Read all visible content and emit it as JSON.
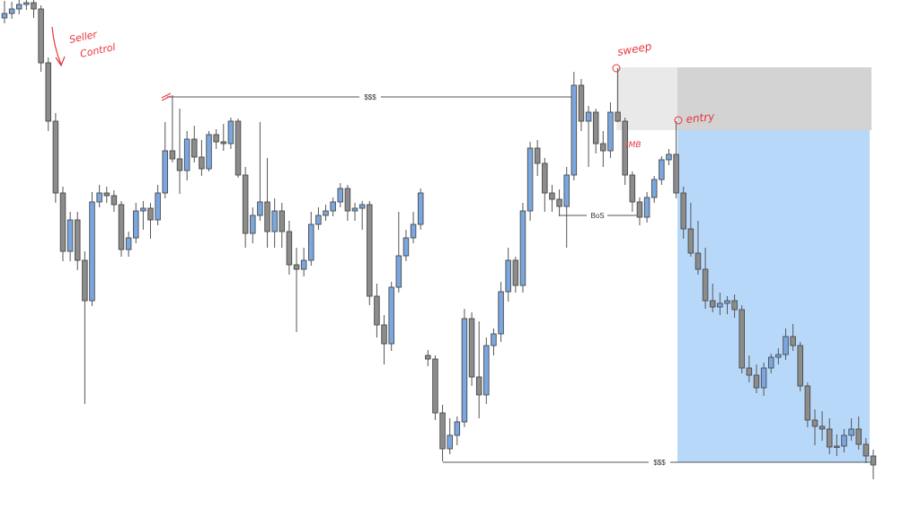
{
  "chart_data": {
    "type": "candlestick",
    "title": "",
    "xlabel": "",
    "ylabel": "",
    "axes_visible": false,
    "grid": false,
    "colors": {
      "bullish": "#7aa7e0",
      "bearish": "#8c8c8c",
      "outline": "#4a4a4a",
      "target_zone": "#b8d8fa",
      "supply_zone": "#e9e9e9",
      "supply_zone_dark": "#d3d3d3",
      "annotation": "#e8343a",
      "level_line": "#555555"
    },
    "candles_ohlc": [
      [
        556,
        575,
        550,
        561
      ],
      [
        561,
        574,
        555,
        566
      ],
      [
        566,
        576,
        560,
        571
      ],
      [
        571,
        576,
        565,
        573
      ],
      [
        573,
        576,
        556,
        566
      ],
      [
        566,
        570,
        496,
        506
      ],
      [
        506,
        512,
        430,
        441
      ],
      [
        441,
        450,
        350,
        361
      ],
      [
        361,
        368,
        285,
        296
      ],
      [
        296,
        340,
        285,
        331
      ],
      [
        331,
        340,
        275,
        286
      ],
      [
        286,
        296,
        126,
        241
      ],
      [
        241,
        362,
        235,
        351
      ],
      [
        351,
        370,
        345,
        361
      ],
      [
        361,
        368,
        350,
        358
      ],
      [
        358,
        364,
        340,
        348
      ],
      [
        348,
        352,
        290,
        298
      ],
      [
        298,
        318,
        290,
        311
      ],
      [
        311,
        350,
        305,
        341
      ],
      [
        341,
        352,
        320,
        344
      ],
      [
        344,
        350,
        310,
        331
      ],
      [
        331,
        370,
        325,
        361
      ],
      [
        361,
        440,
        355,
        408
      ],
      [
        408,
        470,
        395,
        399
      ],
      [
        399,
        455,
        360,
        386
      ],
      [
        386,
        430,
        375,
        421
      ],
      [
        421,
        436,
        395,
        401
      ],
      [
        401,
        420,
        380,
        388
      ],
      [
        388,
        430,
        385,
        426
      ],
      [
        426,
        432,
        410,
        418
      ],
      [
        418,
        438,
        408,
        416
      ],
      [
        416,
        445,
        410,
        441
      ],
      [
        441,
        444,
        378,
        381
      ],
      [
        381,
        390,
        300,
        316
      ],
      [
        316,
        345,
        305,
        336
      ],
      [
        336,
        440,
        330,
        351
      ],
      [
        351,
        400,
        300,
        318
      ],
      [
        318,
        355,
        300,
        341
      ],
      [
        341,
        350,
        300,
        318
      ],
      [
        318,
        330,
        270,
        281
      ],
      [
        281,
        300,
        206,
        276
      ],
      [
        276,
        300,
        268,
        286
      ],
      [
        286,
        340,
        280,
        326
      ],
      [
        326,
        345,
        320,
        336
      ],
      [
        336,
        348,
        330,
        341
      ],
      [
        341,
        356,
        335,
        351
      ],
      [
        351,
        372,
        345,
        366
      ],
      [
        366,
        370,
        330,
        341
      ],
      [
        341,
        350,
        330,
        344
      ],
      [
        344,
        352,
        320,
        348
      ],
      [
        348,
        352,
        236,
        246
      ],
      [
        246,
        260,
        200,
        214
      ],
      [
        214,
        225,
        170,
        193
      ],
      [
        193,
        262,
        185,
        256
      ],
      [
        256,
        340,
        250,
        291
      ],
      [
        291,
        320,
        285,
        311
      ],
      [
        311,
        340,
        305,
        326
      ],
      [
        326,
        366,
        320,
        361
      ],
      [
        180,
        186,
        168,
        176
      ],
      [
        176,
        180,
        108,
        116
      ],
      [
        116,
        125,
        62,
        76
      ],
      [
        76,
        110,
        70,
        91
      ],
      [
        91,
        112,
        80,
        106
      ],
      [
        106,
        232,
        100,
        221
      ],
      [
        221,
        228,
        146,
        156
      ],
      [
        156,
        218,
        110,
        136
      ],
      [
        136,
        200,
        126,
        191
      ],
      [
        191,
        210,
        180,
        204
      ],
      [
        204,
        262,
        195,
        251
      ],
      [
        251,
        300,
        240,
        286
      ],
      [
        286,
        290,
        250,
        258
      ],
      [
        258,
        350,
        250,
        341
      ],
      [
        341,
        418,
        330,
        411
      ],
      [
        411,
        420,
        380,
        394
      ],
      [
        394,
        400,
        340,
        361
      ],
      [
        361,
        370,
        340,
        354
      ],
      [
        354,
        365,
        335,
        346
      ],
      [
        346,
        390,
        300,
        381
      ],
      [
        381,
        496,
        375,
        481
      ],
      [
        481,
        488,
        430,
        441
      ],
      [
        441,
        458,
        390,
        451
      ],
      [
        451,
        455,
        405,
        416
      ],
      [
        416,
        430,
        390,
        408
      ],
      [
        408,
        462,
        400,
        451
      ],
      [
        451,
        500,
        440,
        441
      ],
      [
        441,
        445,
        370,
        381
      ],
      [
        381,
        385,
        340,
        351
      ],
      [
        351,
        356,
        325,
        334
      ],
      [
        334,
        362,
        328,
        356
      ],
      [
        356,
        380,
        350,
        376
      ],
      [
        376,
        402,
        370,
        398
      ],
      [
        398,
        410,
        392,
        404
      ],
      [
        404,
        441,
        355,
        361
      ],
      [
        361,
        368,
        310,
        321
      ],
      [
        321,
        350,
        290,
        294
      ],
      [
        294,
        330,
        270,
        276
      ],
      [
        276,
        300,
        232,
        241
      ],
      [
        241,
        260,
        228,
        234
      ],
      [
        234,
        250,
        225,
        238
      ],
      [
        238,
        246,
        226,
        241
      ],
      [
        241,
        248,
        222,
        231
      ],
      [
        231,
        236,
        160,
        166
      ],
      [
        166,
        180,
        150,
        158
      ],
      [
        158,
        170,
        138,
        144
      ],
      [
        144,
        172,
        135,
        166
      ],
      [
        166,
        182,
        160,
        178
      ],
      [
        178,
        188,
        170,
        181
      ],
      [
        181,
        210,
        175,
        201
      ],
      [
        201,
        215,
        185,
        191
      ],
      [
        191,
        195,
        140,
        146
      ],
      [
        146,
        150,
        100,
        108
      ],
      [
        108,
        120,
        80,
        101
      ],
      [
        101,
        118,
        85,
        98
      ],
      [
        98,
        110,
        70,
        78
      ],
      [
        78,
        92,
        68,
        79
      ],
      [
        79,
        98,
        72,
        91
      ],
      [
        91,
        110,
        85,
        98
      ],
      [
        98,
        112,
        75,
        81
      ],
      [
        81,
        88,
        60,
        68
      ],
      [
        68,
        75,
        42,
        58
      ]
    ],
    "levels": [
      {
        "label": "$$$",
        "price": 468
      },
      {
        "label": "BoS",
        "price": 338
      },
      {
        "label": "$$$",
        "price": 61
      }
    ],
    "zones": [
      {
        "name": "supply",
        "price_top": 501,
        "price_bottom": 431
      },
      {
        "name": "target",
        "price_top": 431,
        "price_bottom": 61
      }
    ],
    "annotations": {
      "seller_control_line1": "Seller",
      "seller_control_line2": "Control",
      "sweep": "sweep",
      "entry": "entry",
      "imbalance": "IMB"
    }
  }
}
